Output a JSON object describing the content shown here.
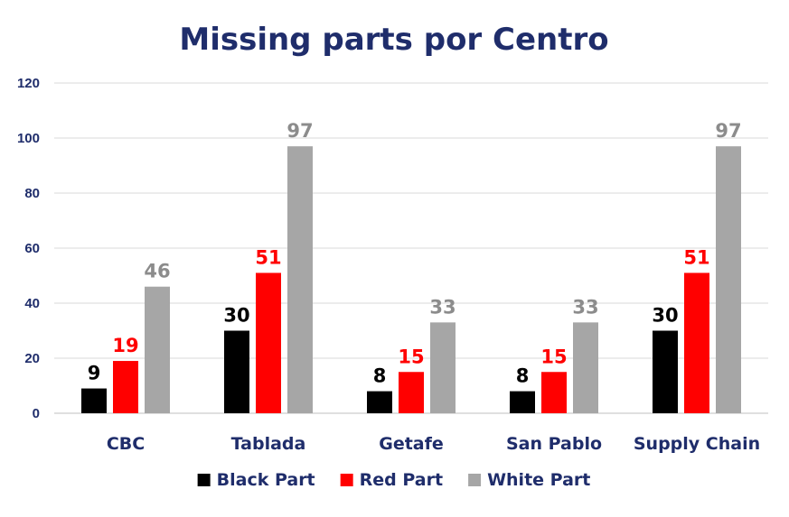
{
  "chart_data": {
    "type": "bar",
    "title": "Missing parts por Centro",
    "categories": [
      "CBC",
      "Tablada",
      "Getafe",
      "San Pablo",
      "Supply Chain"
    ],
    "series": [
      {
        "name": "Black Part",
        "color": "#000000",
        "label_color": "#000000",
        "values": [
          9,
          30,
          8,
          8,
          30
        ]
      },
      {
        "name": "Red Part",
        "color": "#ff0000",
        "label_color": "#ff0000",
        "values": [
          19,
          51,
          15,
          15,
          51
        ]
      },
      {
        "name": "White Part",
        "color": "#a6a6a6",
        "label_color": "#8c8c8c",
        "values": [
          46,
          97,
          33,
          33,
          97
        ]
      }
    ],
    "ylim": [
      0,
      120
    ],
    "yticks": [
      0,
      20,
      40,
      60,
      80,
      100,
      120
    ],
    "grid": true,
    "legend_position": "bottom",
    "xlabel": "",
    "ylabel": ""
  },
  "colors": {
    "title": "#1f2d6b",
    "axis_text": "#1f2d6b",
    "gridline": "#d9d9d9"
  }
}
